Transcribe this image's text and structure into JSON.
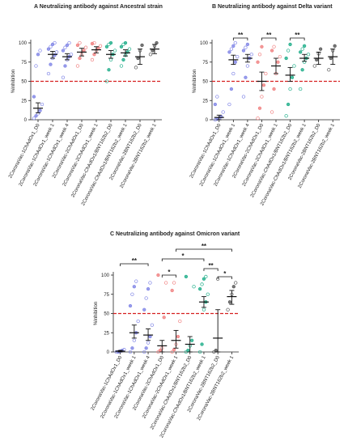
{
  "chart_data": [
    {
      "type": "scatter",
      "title": "A Neutralizing antibody against Ancestral strain",
      "y_label": "%Inhibition",
      "categories": [
        "2CoronaVac-1ChAdOx1_D0",
        "2CoronaVac-1ChAdOx1_week 1",
        "2CoronaVac-1ChAdOx1_week 4",
        "2CoronaVac-2ChAdOx1_D0",
        "2CoronaVac-2ChAdOx1_week 1",
        "2CoronaVac-ChAdOx1/BNT162b2_D0",
        "2CoronaVac-ChAdOx1/BNT162b2_week 1",
        "2CoronaVac-2BNT162b2_D0",
        "2CoronaVac-2BNT162b2_week 1"
      ],
      "ylim": [
        0,
        100
      ],
      "yticks": [
        0,
        25,
        50,
        75,
        100
      ],
      "threshold": 50,
      "groups": [
        {
          "color": "#7f84e6",
          "mean": 15,
          "low": 9,
          "high": 22,
          "points": [
            2,
            5,
            8,
            12,
            20,
            30,
            70,
            85,
            90
          ]
        },
        {
          "color": "#7f84e6",
          "mean": 85,
          "low": 80,
          "high": 89,
          "points": [
            60,
            72,
            80,
            84,
            88,
            92,
            95,
            98,
            100
          ]
        },
        {
          "color": "#7f84e6",
          "mean": 82,
          "low": 78,
          "high": 86,
          "points": [
            55,
            70,
            78,
            82,
            85,
            90,
            94,
            97,
            100
          ]
        },
        {
          "color": "#f08080",
          "mean": 88,
          "low": 83,
          "high": 93,
          "points": [
            70,
            80,
            85,
            90,
            94,
            97,
            100
          ]
        },
        {
          "color": "#f08080",
          "mean": 91,
          "low": 87,
          "high": 95,
          "points": [
            78,
            85,
            90,
            93,
            96,
            99,
            100
          ]
        },
        {
          "color": "#1fae8a",
          "mean": 85,
          "low": 80,
          "high": 90,
          "points": [
            50,
            65,
            78,
            85,
            90,
            95,
            98,
            100
          ]
        },
        {
          "color": "#1fae8a",
          "mean": 87,
          "low": 83,
          "high": 91,
          "points": [
            70,
            78,
            84,
            88,
            92,
            95,
            98,
            100
          ]
        },
        {
          "color": "#555555",
          "mean": 82,
          "low": 72,
          "high": 92,
          "points": [
            68,
            80,
            90,
            97
          ]
        },
        {
          "color": "#555555",
          "mean": 92,
          "low": 86,
          "high": 98,
          "points": [
            85,
            90,
            96,
            100
          ]
        }
      ],
      "brackets": []
    },
    {
      "type": "scatter",
      "title": "B Neutralizing antibody against Delta variant",
      "y_label": "%Inhibition",
      "categories": [
        "2CoronaVac-1ChAdOx1_D0",
        "2CoronaVac-1ChAdOx1_week 1",
        "2CoronaVac-1ChAdOx1_week 4",
        "2CoronaVac-2ChAdOx1_D0",
        "2CoronaVac-2ChAdOx1_week 1",
        "2CoronaVac-ChAdOx1/BNT162b2_D0",
        "2CoronaVac-ChAdOx1/BNT162b2_week 1",
        "2CoronaVac-2BNT162b2_D0",
        "2CoronaVac-2BNT162b2_week 1"
      ],
      "ylim": [
        0,
        100
      ],
      "yticks": [
        0,
        25,
        50,
        75,
        100
      ],
      "threshold": 50,
      "groups": [
        {
          "color": "#7f84e6",
          "mean": 3,
          "low": 0,
          "high": 6,
          "points": [
            0,
            1,
            2,
            4,
            10,
            20,
            30
          ]
        },
        {
          "color": "#7f84e6",
          "mean": 78,
          "low": 72,
          "high": 84,
          "points": [
            20,
            40,
            60,
            75,
            82,
            88,
            92,
            96,
            100
          ]
        },
        {
          "color": "#7f84e6",
          "mean": 80,
          "low": 75,
          "high": 85,
          "points": [
            30,
            55,
            70,
            80,
            85,
            90,
            94,
            98
          ]
        },
        {
          "color": "#f08080",
          "mean": 50,
          "low": 38,
          "high": 62,
          "points": [
            2,
            15,
            30,
            45,
            60,
            75,
            85,
            95
          ]
        },
        {
          "color": "#f08080",
          "mean": 70,
          "low": 60,
          "high": 80,
          "points": [
            10,
            40,
            60,
            75,
            82,
            90,
            95
          ]
        },
        {
          "color": "#1fae8a",
          "mean": 58,
          "low": 50,
          "high": 68,
          "points": [
            5,
            20,
            40,
            55,
            70,
            80,
            90,
            98
          ]
        },
        {
          "color": "#1fae8a",
          "mean": 80,
          "low": 76,
          "high": 85,
          "points": [
            40,
            65,
            75,
            80,
            85,
            88,
            92,
            96
          ]
        },
        {
          "color": "#555555",
          "mean": 80,
          "low": 72,
          "high": 88,
          "points": [
            70,
            78,
            86,
            92
          ]
        },
        {
          "color": "#555555",
          "mean": 82,
          "low": 72,
          "high": 92,
          "points": [
            65,
            80,
            90,
            96
          ]
        }
      ],
      "brackets": [
        {
          "from": 1,
          "to": 2,
          "label": "**"
        },
        {
          "from": 3,
          "to": 4,
          "label": "**"
        },
        {
          "from": 5,
          "to": 6,
          "label": "**"
        }
      ]
    },
    {
      "type": "scatter",
      "title": "C Neutralizing antibody against Omicron variant",
      "y_label": "%Inhibition",
      "categories": [
        "2CoronaVac-1ChAdOx1_D0",
        "2CoronaVac-1ChAdOx1_week 1",
        "2CoronaVac-1ChAdOx1_week 4",
        "2CoronaVac-2ChAdOx1_D0",
        "2CoronaVac-2ChAdOx1_week 1",
        "2CoronaVac-ChAdOx1/BNT162b2_D0",
        "2CoronaVac-ChAdOx1/BNT162b2_week 1",
        "2CoronaVac-2BNT162b2_D0",
        "2CoronaVac-2BNT162b2_week 1"
      ],
      "ylim": [
        0,
        100
      ],
      "yticks": [
        0,
        25,
        50,
        75,
        100
      ],
      "threshold": 50,
      "groups": [
        {
          "color": "#7f84e6",
          "mean": 1,
          "low": 0,
          "high": 2,
          "points": [
            0,
            0,
            1,
            2,
            3
          ]
        },
        {
          "color": "#7f84e6",
          "mean": 25,
          "low": 18,
          "high": 35,
          "points": [
            0,
            5,
            15,
            25,
            40,
            60,
            75,
            85,
            92
          ]
        },
        {
          "color": "#7f84e6",
          "mean": 22,
          "low": 15,
          "high": 30,
          "points": [
            0,
            5,
            12,
            20,
            35,
            55,
            70,
            82,
            90
          ]
        },
        {
          "color": "#f08080",
          "mean": 8,
          "low": 0,
          "high": 15,
          "points": [
            0,
            2,
            5,
            45,
            90,
            100
          ]
        },
        {
          "color": "#f08080",
          "mean": 15,
          "low": 5,
          "high": 28,
          "points": [
            0,
            3,
            10,
            20,
            40,
            80,
            90
          ]
        },
        {
          "color": "#1fae8a",
          "mean": 10,
          "low": 0,
          "high": 20,
          "points": [
            0,
            2,
            8,
            15,
            85,
            98
          ]
        },
        {
          "color": "#1fae8a",
          "mean": 65,
          "low": 58,
          "high": 72,
          "points": [
            0,
            10,
            55,
            65,
            75,
            82,
            88,
            95,
            98
          ]
        },
        {
          "color": "#555555",
          "mean": 18,
          "low": 0,
          "high": 55,
          "points": [
            0,
            2,
            95
          ]
        },
        {
          "color": "#555555",
          "mean": 72,
          "low": 62,
          "high": 80,
          "points": [
            55,
            65,
            75,
            85,
            90
          ]
        }
      ],
      "brackets": [
        {
          "from": 0,
          "to": 2,
          "label": "**"
        },
        {
          "from": 3,
          "to": 4,
          "label": "*"
        },
        {
          "from": 6,
          "to": 7,
          "label": "**"
        },
        {
          "from": 3,
          "to": 6,
          "label": "*"
        },
        {
          "from": 4,
          "to": 8,
          "label": "**"
        },
        {
          "from": 7,
          "to": 8,
          "label": "*"
        }
      ]
    }
  ]
}
